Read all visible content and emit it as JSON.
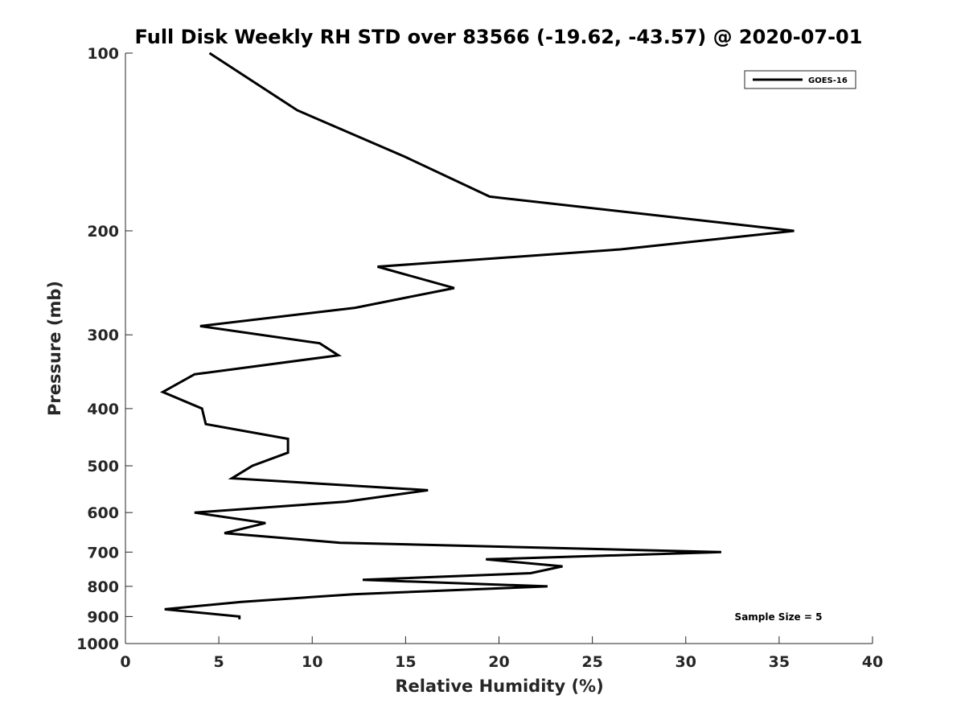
{
  "chart_data": {
    "type": "line",
    "title": "Full Disk Weekly RH STD over 83566 (-19.62, -43.57) @ 2020-07-01",
    "xlabel": "Relative Humidity (%)",
    "ylabel": "Pressure (mb)",
    "xlim": [
      0,
      40
    ],
    "ylim": [
      100,
      1000
    ],
    "yscale": "log",
    "yreversed": true,
    "xticks": [
      0,
      5,
      10,
      15,
      20,
      25,
      30,
      35,
      40
    ],
    "yticks": [
      100,
      200,
      300,
      400,
      500,
      600,
      700,
      800,
      900,
      1000
    ],
    "grid": false,
    "legend_position": "top-right",
    "annotation": "Sample Size = 5",
    "series": [
      {
        "name": "GOES-16",
        "color": "#000000",
        "points": [
          {
            "rh": 4.5,
            "p": 100
          },
          {
            "rh": 9.2,
            "p": 125
          },
          {
            "rh": 15.0,
            "p": 150
          },
          {
            "rh": 19.5,
            "p": 175
          },
          {
            "rh": 35.8,
            "p": 200
          },
          {
            "rh": 26.5,
            "p": 215
          },
          {
            "rh": 13.5,
            "p": 230
          },
          {
            "rh": 17.6,
            "p": 250
          },
          {
            "rh": 12.3,
            "p": 270
          },
          {
            "rh": 4.0,
            "p": 290
          },
          {
            "rh": 10.4,
            "p": 310
          },
          {
            "rh": 11.4,
            "p": 325
          },
          {
            "rh": 3.7,
            "p": 350
          },
          {
            "rh": 2.0,
            "p": 375
          },
          {
            "rh": 4.1,
            "p": 400
          },
          {
            "rh": 4.3,
            "p": 425
          },
          {
            "rh": 8.7,
            "p": 450
          },
          {
            "rh": 8.7,
            "p": 475
          },
          {
            "rh": 6.8,
            "p": 500
          },
          {
            "rh": 5.7,
            "p": 525
          },
          {
            "rh": 16.2,
            "p": 550
          },
          {
            "rh": 11.8,
            "p": 575
          },
          {
            "rh": 3.7,
            "p": 600
          },
          {
            "rh": 7.5,
            "p": 625
          },
          {
            "rh": 5.3,
            "p": 650
          },
          {
            "rh": 11.5,
            "p": 675
          },
          {
            "rh": 31.9,
            "p": 700
          },
          {
            "rh": 19.3,
            "p": 720
          },
          {
            "rh": 23.4,
            "p": 740
          },
          {
            "rh": 21.7,
            "p": 760
          },
          {
            "rh": 12.7,
            "p": 780
          },
          {
            "rh": 22.6,
            "p": 800
          },
          {
            "rh": 12.2,
            "p": 825
          },
          {
            "rh": 6.2,
            "p": 850
          },
          {
            "rh": 2.1,
            "p": 875
          },
          {
            "rh": 6.1,
            "p": 900
          },
          {
            "rh": 6.1,
            "p": 910
          }
        ]
      }
    ]
  }
}
